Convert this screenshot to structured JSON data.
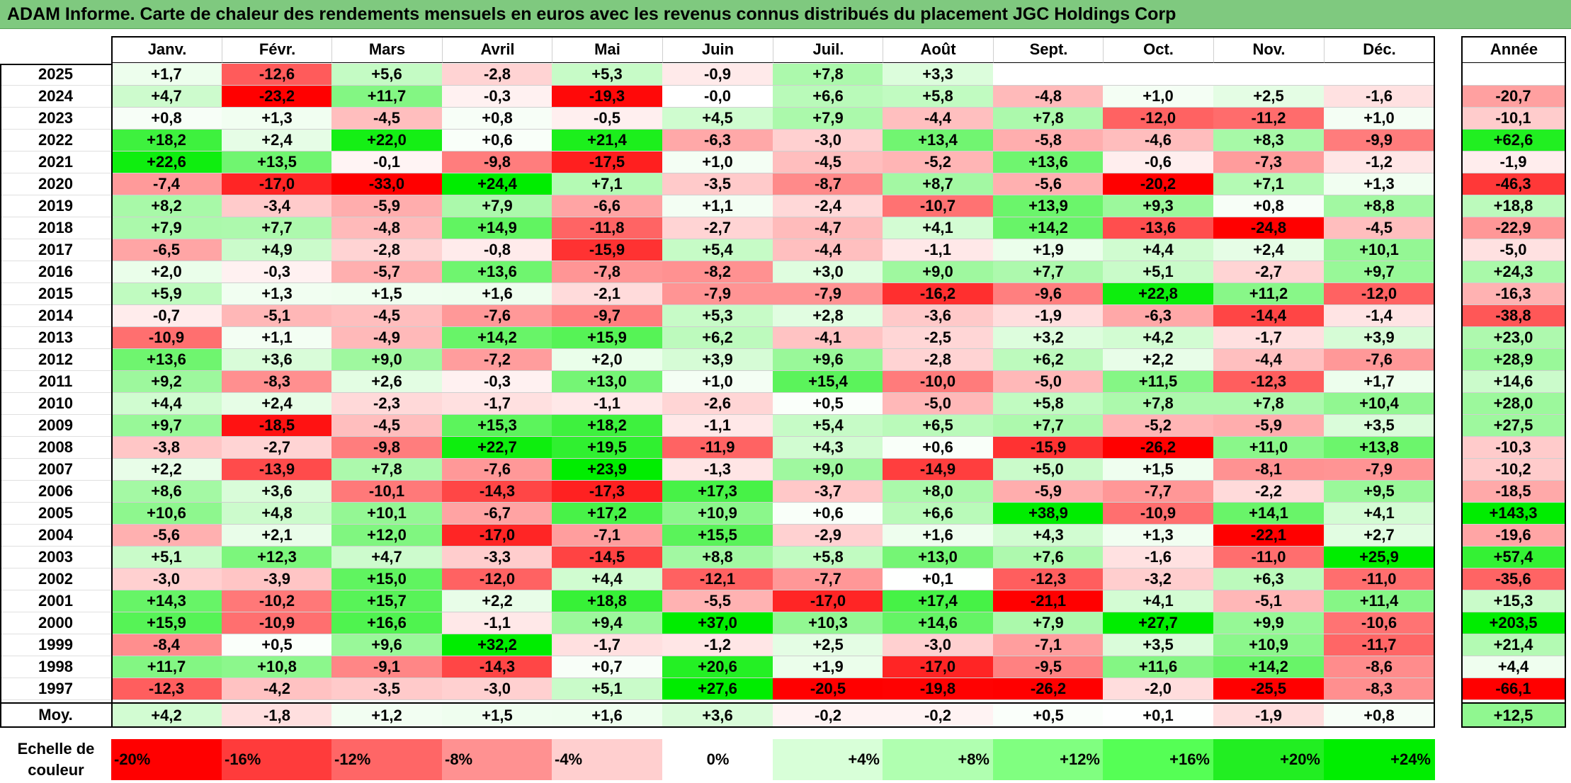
{
  "title": "ADAM Informe. Carte de chaleur des rendements mensuels en euros avec les revenus connus distribués du placement JGC Holdings Corp",
  "chart_data": {
    "type": "heatmap",
    "title": "ADAM Informe. Carte de chaleur des rendements mensuels en euros avec les revenus connus distribués du placement JGC Holdings Corp",
    "months": [
      "Janv.",
      "Févr.",
      "Mars",
      "Avril",
      "Mai",
      "Juin",
      "Juil.",
      "Août",
      "Sept.",
      "Oct.",
      "Nov.",
      "Déc."
    ],
    "year_header": "Année",
    "avg_label": "Moy.",
    "rows": [
      {
        "year": "2025",
        "values": [
          "+1,7",
          "-12,6",
          "+5,6",
          "-2,8",
          "+5,3",
          "-0,9",
          "+7,8",
          "+3,3",
          "",
          "",
          "",
          ""
        ],
        "annual": ""
      },
      {
        "year": "2024",
        "values": [
          "+4,7",
          "-23,2",
          "+11,7",
          "-0,3",
          "-19,3",
          "-0,0",
          "+6,6",
          "+5,8",
          "-4,8",
          "+1,0",
          "+2,5",
          "-1,6"
        ],
        "annual": "-20,7"
      },
      {
        "year": "2023",
        "values": [
          "+0,8",
          "+1,3",
          "-4,5",
          "+0,8",
          "-0,5",
          "+4,5",
          "+7,9",
          "-4,4",
          "+7,8",
          "-12,0",
          "-11,2",
          "+1,0"
        ],
        "annual": "-10,1"
      },
      {
        "year": "2022",
        "values": [
          "+18,2",
          "+2,4",
          "+22,0",
          "+0,6",
          "+21,4",
          "-6,3",
          "-3,0",
          "+13,4",
          "-5,8",
          "-4,6",
          "+8,3",
          "-9,9"
        ],
        "annual": "+62,6"
      },
      {
        "year": "2021",
        "values": [
          "+22,6",
          "+13,5",
          "-0,1",
          "-9,8",
          "-17,5",
          "+1,0",
          "-4,5",
          "-5,2",
          "+13,6",
          "-0,6",
          "-7,3",
          "-1,2"
        ],
        "annual": "-1,9"
      },
      {
        "year": "2020",
        "values": [
          "-7,4",
          "-17,0",
          "-33,0",
          "+24,4",
          "+7,1",
          "-3,5",
          "-8,7",
          "+8,7",
          "-5,6",
          "-20,2",
          "+7,1",
          "+1,3"
        ],
        "annual": "-46,3"
      },
      {
        "year": "2019",
        "values": [
          "+8,2",
          "-3,4",
          "-5,9",
          "+7,9",
          "-6,6",
          "+1,1",
          "-2,4",
          "-10,7",
          "+13,9",
          "+9,3",
          "+0,8",
          "+8,8"
        ],
        "annual": "+18,8"
      },
      {
        "year": "2018",
        "values": [
          "+7,9",
          "+7,7",
          "-4,8",
          "+14,9",
          "-11,8",
          "-2,7",
          "-4,7",
          "+4,1",
          "+14,2",
          "-13,6",
          "-24,8",
          "-4,5"
        ],
        "annual": "-22,9"
      },
      {
        "year": "2017",
        "values": [
          "-6,5",
          "+4,9",
          "-2,8",
          "-0,8",
          "-15,9",
          "+5,4",
          "-4,4",
          "-1,1",
          "+1,9",
          "+4,4",
          "+2,4",
          "+10,1"
        ],
        "annual": "-5,0"
      },
      {
        "year": "2016",
        "values": [
          "+2,0",
          "-0,3",
          "-5,7",
          "+13,6",
          "-7,8",
          "-8,2",
          "+3,0",
          "+9,0",
          "+7,7",
          "+5,1",
          "-2,7",
          "+9,7"
        ],
        "annual": "+24,3"
      },
      {
        "year": "2015",
        "values": [
          "+5,9",
          "+1,3",
          "+1,5",
          "+1,6",
          "-2,1",
          "-7,9",
          "-7,9",
          "-16,2",
          "-9,6",
          "+22,8",
          "+11,2",
          "-12,0"
        ],
        "annual": "-16,3"
      },
      {
        "year": "2014",
        "values": [
          "-0,7",
          "-5,1",
          "-4,5",
          "-7,6",
          "-9,7",
          "+5,3",
          "+2,8",
          "-3,6",
          "-1,9",
          "-6,3",
          "-14,4",
          "-1,4"
        ],
        "annual": "-38,8"
      },
      {
        "year": "2013",
        "values": [
          "-10,9",
          "+1,1",
          "-4,9",
          "+14,2",
          "+15,9",
          "+6,2",
          "-4,1",
          "-2,5",
          "+3,2",
          "+4,2",
          "-1,7",
          "+3,9"
        ],
        "annual": "+23,0"
      },
      {
        "year": "2012",
        "values": [
          "+13,6",
          "+3,6",
          "+9,0",
          "-7,2",
          "+2,0",
          "+3,9",
          "+9,6",
          "-2,8",
          "+6,2",
          "+2,2",
          "-4,4",
          "-7,6"
        ],
        "annual": "+28,9"
      },
      {
        "year": "2011",
        "values": [
          "+9,2",
          "-8,3",
          "+2,6",
          "-0,3",
          "+13,0",
          "+1,0",
          "+15,4",
          "-10,0",
          "-5,0",
          "+11,5",
          "-12,3",
          "+1,7"
        ],
        "annual": "+14,6"
      },
      {
        "year": "2010",
        "values": [
          "+4,4",
          "+2,4",
          "-2,3",
          "-1,7",
          "-1,1",
          "-2,6",
          "+0,5",
          "-5,0",
          "+5,8",
          "+7,8",
          "+7,8",
          "+10,4"
        ],
        "annual": "+28,0"
      },
      {
        "year": "2009",
        "values": [
          "+9,7",
          "-18,5",
          "-4,5",
          "+15,3",
          "+18,2",
          "-1,1",
          "+5,4",
          "+6,5",
          "+7,7",
          "-5,2",
          "-5,9",
          "+3,5"
        ],
        "annual": "+27,5"
      },
      {
        "year": "2008",
        "values": [
          "-3,8",
          "-2,7",
          "-9,8",
          "+22,7",
          "+19,5",
          "-11,9",
          "+4,3",
          "+0,6",
          "-15,9",
          "-26,2",
          "+11,0",
          "+13,8"
        ],
        "annual": "-10,3"
      },
      {
        "year": "2007",
        "values": [
          "+2,2",
          "-13,9",
          "+7,8",
          "-7,6",
          "+23,9",
          "-1,3",
          "+9,0",
          "-14,9",
          "+5,0",
          "+1,5",
          "-8,1",
          "-7,9"
        ],
        "annual": "-10,2"
      },
      {
        "year": "2006",
        "values": [
          "+8,6",
          "+3,6",
          "-10,1",
          "-14,3",
          "-17,3",
          "+17,3",
          "-3,7",
          "+8,0",
          "-5,9",
          "-7,7",
          "-2,2",
          "+9,5"
        ],
        "annual": "-18,5"
      },
      {
        "year": "2005",
        "values": [
          "+10,6",
          "+4,8",
          "+10,1",
          "-6,7",
          "+17,2",
          "+10,9",
          "+0,6",
          "+6,6",
          "+38,9",
          "-10,9",
          "+14,1",
          "+4,1"
        ],
        "annual": "+143,3"
      },
      {
        "year": "2004",
        "values": [
          "-5,6",
          "+2,1",
          "+12,0",
          "-17,0",
          "-7,1",
          "+15,5",
          "-2,9",
          "+1,6",
          "+4,3",
          "+1,3",
          "-22,1",
          "+2,7"
        ],
        "annual": "-19,6"
      },
      {
        "year": "2003",
        "values": [
          "+5,1",
          "+12,3",
          "+4,7",
          "-3,3",
          "-14,5",
          "+8,8",
          "+5,8",
          "+13,0",
          "+7,6",
          "-1,6",
          "-11,0",
          "+25,9"
        ],
        "annual": "+57,4"
      },
      {
        "year": "2002",
        "values": [
          "-3,0",
          "-3,9",
          "+15,0",
          "-12,0",
          "+4,4",
          "-12,1",
          "-7,7",
          "+0,1",
          "-12,3",
          "-3,2",
          "+6,3",
          "-11,0"
        ],
        "annual": "-35,6"
      },
      {
        "year": "2001",
        "values": [
          "+14,3",
          "-10,2",
          "+15,7",
          "+2,2",
          "+18,8",
          "-5,5",
          "-17,0",
          "+17,4",
          "-21,1",
          "+4,1",
          "-5,1",
          "+11,4"
        ],
        "annual": "+15,3"
      },
      {
        "year": "2000",
        "values": [
          "+15,9",
          "-10,9",
          "+16,6",
          "-1,1",
          "+9,4",
          "+37,0",
          "+10,3",
          "+14,6",
          "+7,9",
          "+27,7",
          "+9,9",
          "-10,6"
        ],
        "annual": "+203,5"
      },
      {
        "year": "1999",
        "values": [
          "-8,4",
          "+0,5",
          "+9,6",
          "+32,2",
          "-1,7",
          "-1,2",
          "+2,5",
          "-3,0",
          "-7,1",
          "+3,5",
          "+10,9",
          "-11,7"
        ],
        "annual": "+21,4"
      },
      {
        "year": "1998",
        "values": [
          "+11,7",
          "+10,8",
          "-9,1",
          "-14,3",
          "+0,7",
          "+20,6",
          "+1,9",
          "-17,0",
          "-9,5",
          "+11,6",
          "+14,2",
          "-8,6"
        ],
        "annual": "+4,4"
      },
      {
        "year": "1997",
        "values": [
          "-12,3",
          "-4,2",
          "-3,5",
          "-3,0",
          "+5,1",
          "+27,6",
          "-20,5",
          "-19,8",
          "-26,2",
          "-2,0",
          "-25,5",
          "-8,3"
        ],
        "annual": "-66,1"
      }
    ],
    "averages": [
      "+4,2",
      "-1,8",
      "+1,2",
      "+1,5",
      "+1,6",
      "+3,6",
      "-0,2",
      "-0,2",
      "+0,5",
      "+0,1",
      "-1,9",
      "+0,8"
    ],
    "annual_average": "+12,5",
    "legend_title": "Echelle de couleur",
    "legend_title_lines": [
      "Echelle de",
      "couleur"
    ],
    "scale": [
      "-20%",
      "-16%",
      "-12%",
      "-8%",
      "-4%",
      "0%",
      "+4%",
      "+8%",
      "+12%",
      "+16%",
      "+20%",
      "+24%"
    ],
    "scale_colors": [
      "#ff0000",
      "#ff3b3b",
      "#ff6666",
      "#ff9191",
      "#ffcfcf",
      "#ffffff",
      "#d8ffd8",
      "#b0ffb0",
      "#80ff80",
      "#55ff55",
      "#22ee22",
      "#00ee00"
    ]
  }
}
